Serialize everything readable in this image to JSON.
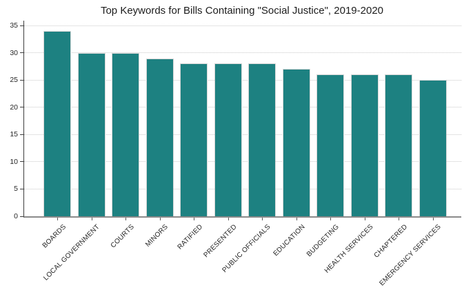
{
  "chart_data": {
    "type": "bar",
    "title": "Top Keywords for Bills Containing \"Social Justice\", 2019-2020",
    "categories": [
      "BOARDS",
      "LOCAL GOVERNMENT",
      "COURTS",
      "MINORS",
      "RATIFIED",
      "PRESENTED",
      "PUBLIC OFFICIALS",
      "EDUCATION",
      "BUDGETING",
      "HEALTH SERVICES",
      "CHAPTERED",
      "EMERGENCY SERVICES"
    ],
    "values": [
      34,
      30,
      30,
      29,
      28,
      28,
      28,
      27,
      26,
      26,
      26,
      25
    ],
    "xlabel": "",
    "ylabel": "",
    "ylim": [
      0,
      35
    ],
    "yticks": [
      0,
      5,
      10,
      15,
      20,
      25,
      30,
      35
    ],
    "grid": "horizontal-dotted",
    "legend": "none",
    "bar_color": "#1d8181",
    "bar_edge_color": "#d6d6d6",
    "gridline_color": "#c9c9c9",
    "axis_spine_left_color": "#3c3c3c",
    "axis_spine_bottom_color": "#8a8a8a",
    "text_color": "#1f1f1f",
    "background_color": "#ffffff",
    "x_label_rotation_deg": 45
  }
}
